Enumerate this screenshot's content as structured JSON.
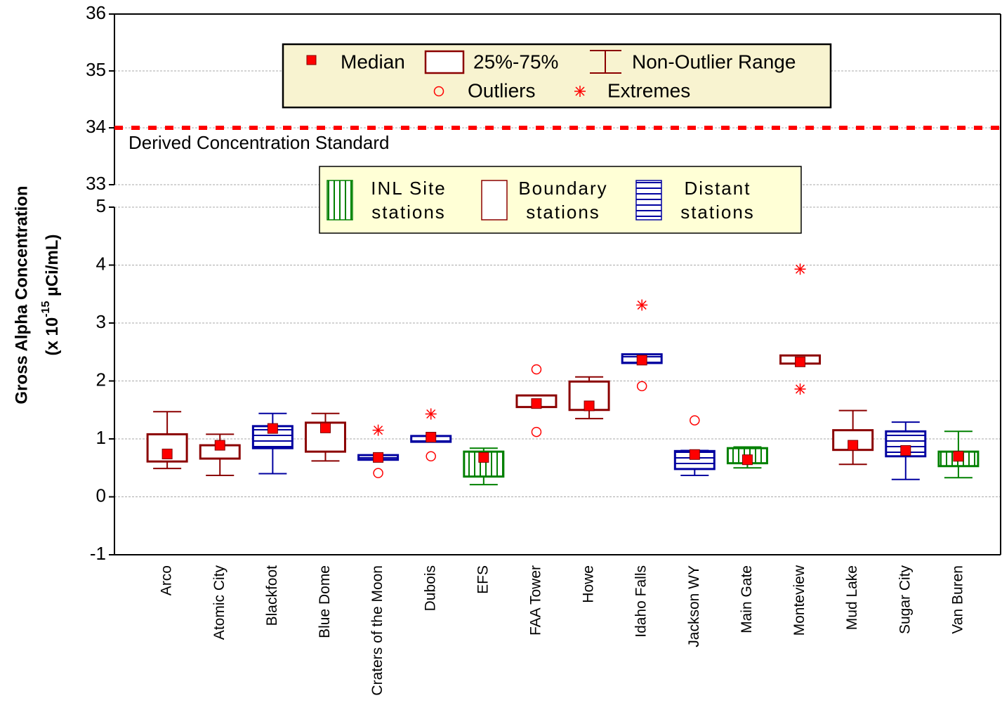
{
  "chart_data": {
    "type": "box",
    "y_label": "Gross Alpha Concentration",
    "y_label_unit": [
      "(x 10",
      "-15",
      " µCi/mL)"
    ],
    "categories": [
      "Arco",
      "Atomic City",
      "Blackfoot",
      "Blue Dome",
      "Craters of the Moon",
      "Dubois",
      "EFS",
      "FAA Tower",
      "Howe",
      "Idaho Falls",
      "Jackson WY",
      "Main Gate",
      "Monteview",
      "Mud Lake",
      "Sugar City",
      "Van Buren"
    ],
    "groups": [
      {
        "name": "INL Site stations",
        "color": "#008000",
        "hatch": "vertical"
      },
      {
        "name": "Boundary stations",
        "color": "#8b0000",
        "hatch": "none"
      },
      {
        "name": "Distant stations",
        "color": "#0000a0",
        "hatch": "horizontal"
      }
    ],
    "boxes": [
      {
        "group": 1,
        "median": 0.74,
        "q1": 0.61,
        "q3": 1.08,
        "low": 0.49,
        "high": 1.47,
        "outliers": [],
        "extremes": []
      },
      {
        "group": 1,
        "median": 0.89,
        "q1": 0.66,
        "q3": 0.89,
        "low": 0.37,
        "high": 1.08,
        "outliers": [],
        "extremes": []
      },
      {
        "group": 2,
        "median": 1.18,
        "q1": 0.84,
        "q3": 1.22,
        "low": 0.4,
        "high": 1.44,
        "outliers": [],
        "extremes": []
      },
      {
        "group": 1,
        "median": 1.19,
        "q1": 0.78,
        "q3": 1.28,
        "low": 0.62,
        "high": 1.44,
        "outliers": [],
        "extremes": []
      },
      {
        "group": 2,
        "median": 0.68,
        "q1": 0.64,
        "q3": 0.72,
        "low": 0.64,
        "high": 0.72,
        "outliers": [
          0.41
        ],
        "extremes": [
          1.15
        ]
      },
      {
        "group": 2,
        "median": 1.03,
        "q1": 0.95,
        "q3": 1.05,
        "low": 0.95,
        "high": 1.05,
        "outliers": [
          0.7
        ],
        "extremes": [
          1.43
        ]
      },
      {
        "group": 0,
        "median": 0.68,
        "q1": 0.35,
        "q3": 0.78,
        "low": 0.21,
        "high": 0.84,
        "outliers": [],
        "extremes": []
      },
      {
        "group": 1,
        "median": 1.61,
        "q1": 1.55,
        "q3": 1.75,
        "low": 1.55,
        "high": 1.75,
        "outliers": [
          2.2,
          1.12
        ],
        "extremes": []
      },
      {
        "group": 1,
        "median": 1.57,
        "q1": 1.5,
        "q3": 1.99,
        "low": 1.35,
        "high": 2.07,
        "outliers": [],
        "extremes": []
      },
      {
        "group": 2,
        "median": 2.36,
        "q1": 2.31,
        "q3": 2.46,
        "low": 2.31,
        "high": 2.46,
        "outliers": [
          1.91
        ],
        "extremes": [
          3.31
        ]
      },
      {
        "group": 2,
        "median": 0.73,
        "q1": 0.48,
        "q3": 0.79,
        "low": 0.37,
        "high": 0.8,
        "outliers": [
          1.32
        ],
        "extremes": []
      },
      {
        "group": 0,
        "median": 0.64,
        "q1": 0.58,
        "q3": 0.84,
        "low": 0.5,
        "high": 0.86,
        "outliers": [],
        "extremes": []
      },
      {
        "group": 1,
        "median": 2.33,
        "q1": 2.3,
        "q3": 2.44,
        "low": 2.3,
        "high": 2.44,
        "outliers": [],
        "extremes": [
          3.93,
          1.86
        ]
      },
      {
        "group": 1,
        "median": 0.89,
        "q1": 0.81,
        "q3": 1.15,
        "low": 0.56,
        "high": 1.49,
        "outliers": [],
        "extremes": []
      },
      {
        "group": 2,
        "median": 0.8,
        "q1": 0.7,
        "q3": 1.13,
        "low": 0.3,
        "high": 1.29,
        "outliers": [],
        "extremes": []
      },
      {
        "group": 0,
        "median": 0.7,
        "q1": 0.53,
        "q3": 0.78,
        "low": 0.33,
        "high": 1.13,
        "outliers": [],
        "extremes": []
      }
    ],
    "ylim": [
      -1,
      5
    ],
    "yticks": [
      -1,
      0,
      1,
      2,
      3,
      4,
      5
    ],
    "upper_ylim": [
      33,
      36
    ],
    "upper_yticks": [
      33,
      34,
      35,
      36
    ],
    "grid": true,
    "median_color": "#ff0000",
    "point_color": "#ff0000",
    "reference_line": {
      "value": 34,
      "label": "Derived Concentration Standard",
      "color": "#ff0000"
    },
    "symbol_legend": [
      "Median",
      "25%-75%",
      "Non-Outlier Range",
      "Outliers",
      "Extremes"
    ]
  }
}
